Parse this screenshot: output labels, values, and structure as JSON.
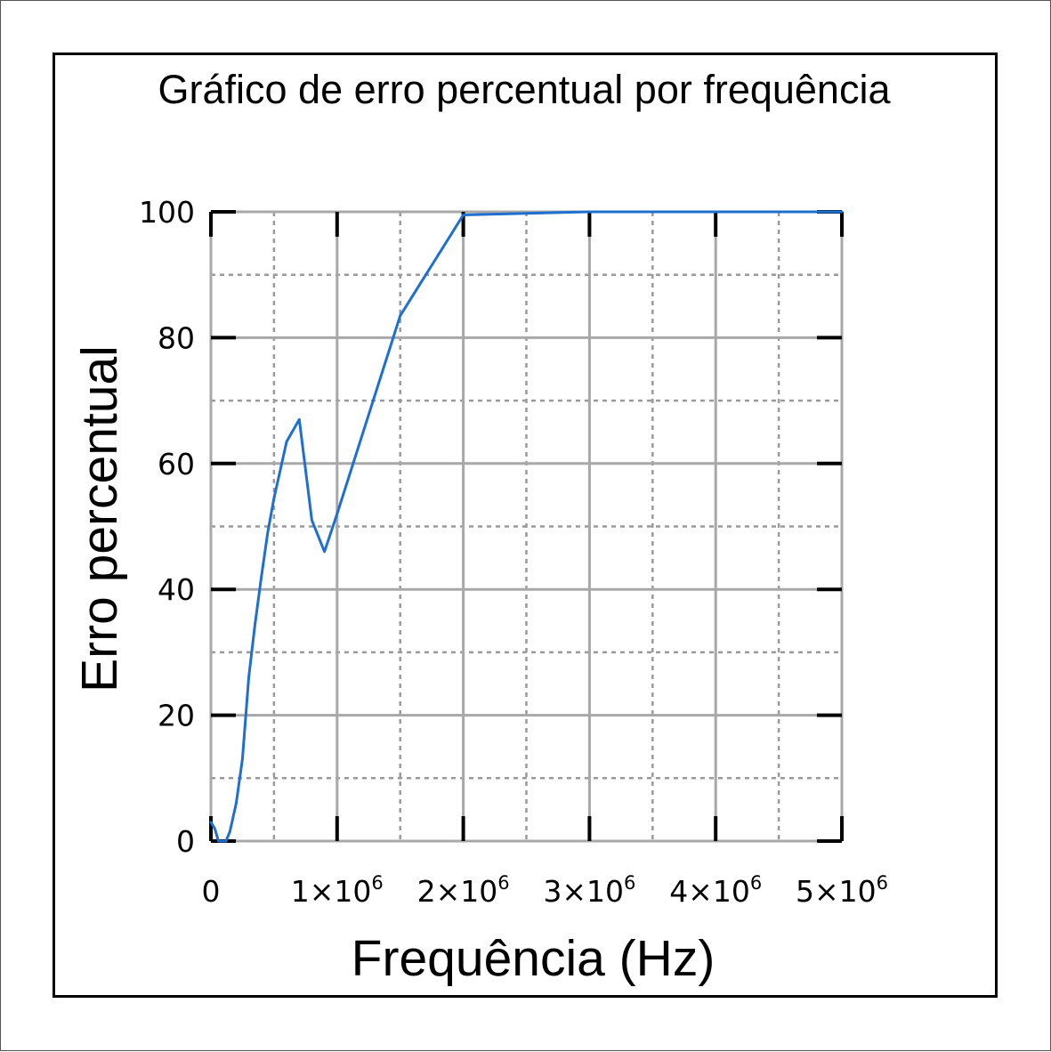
{
  "chart_data": {
    "type": "line",
    "title": "Gráfico de erro percentual por frequência",
    "xlabel": "Frequência (Hz)",
    "ylabel": "Erro percentual",
    "xlim": [
      0,
      5000000
    ],
    "ylim": [
      0,
      100
    ],
    "grid": "major-solid-minor-dotted",
    "line_color": "#1f6fd0",
    "x_ticks": [
      {
        "value": 0,
        "base": "0",
        "exp": ""
      },
      {
        "value": 1000000,
        "base": "1×10",
        "exp": "6"
      },
      {
        "value": 2000000,
        "base": "2×10",
        "exp": "6"
      },
      {
        "value": 3000000,
        "base": "3×10",
        "exp": "6"
      },
      {
        "value": 4000000,
        "base": "4×10",
        "exp": "6"
      },
      {
        "value": 5000000,
        "base": "5×10",
        "exp": "6"
      }
    ],
    "y_ticks": [
      {
        "value": 0,
        "label": "0"
      },
      {
        "value": 20,
        "label": "20"
      },
      {
        "value": 40,
        "label": "40"
      },
      {
        "value": 60,
        "label": "60"
      },
      {
        "value": 80,
        "label": "80"
      },
      {
        "value": 100,
        "label": "100"
      }
    ],
    "series": [
      {
        "x": [
          0,
          30000,
          60000,
          90000,
          120000,
          150000,
          200000,
          250000,
          300000,
          350000,
          400000,
          450000,
          500000,
          600000,
          700000,
          800000,
          900000,
          1000000,
          1500000,
          2000000,
          3000000,
          4000000,
          5000000
        ],
        "y": [
          3,
          2,
          0,
          0,
          0,
          1.5,
          6,
          13,
          26,
          34.5,
          42,
          49,
          54.5,
          63.5,
          67,
          51,
          46,
          52,
          83.5,
          99.5,
          100,
          100,
          100
        ]
      }
    ]
  }
}
